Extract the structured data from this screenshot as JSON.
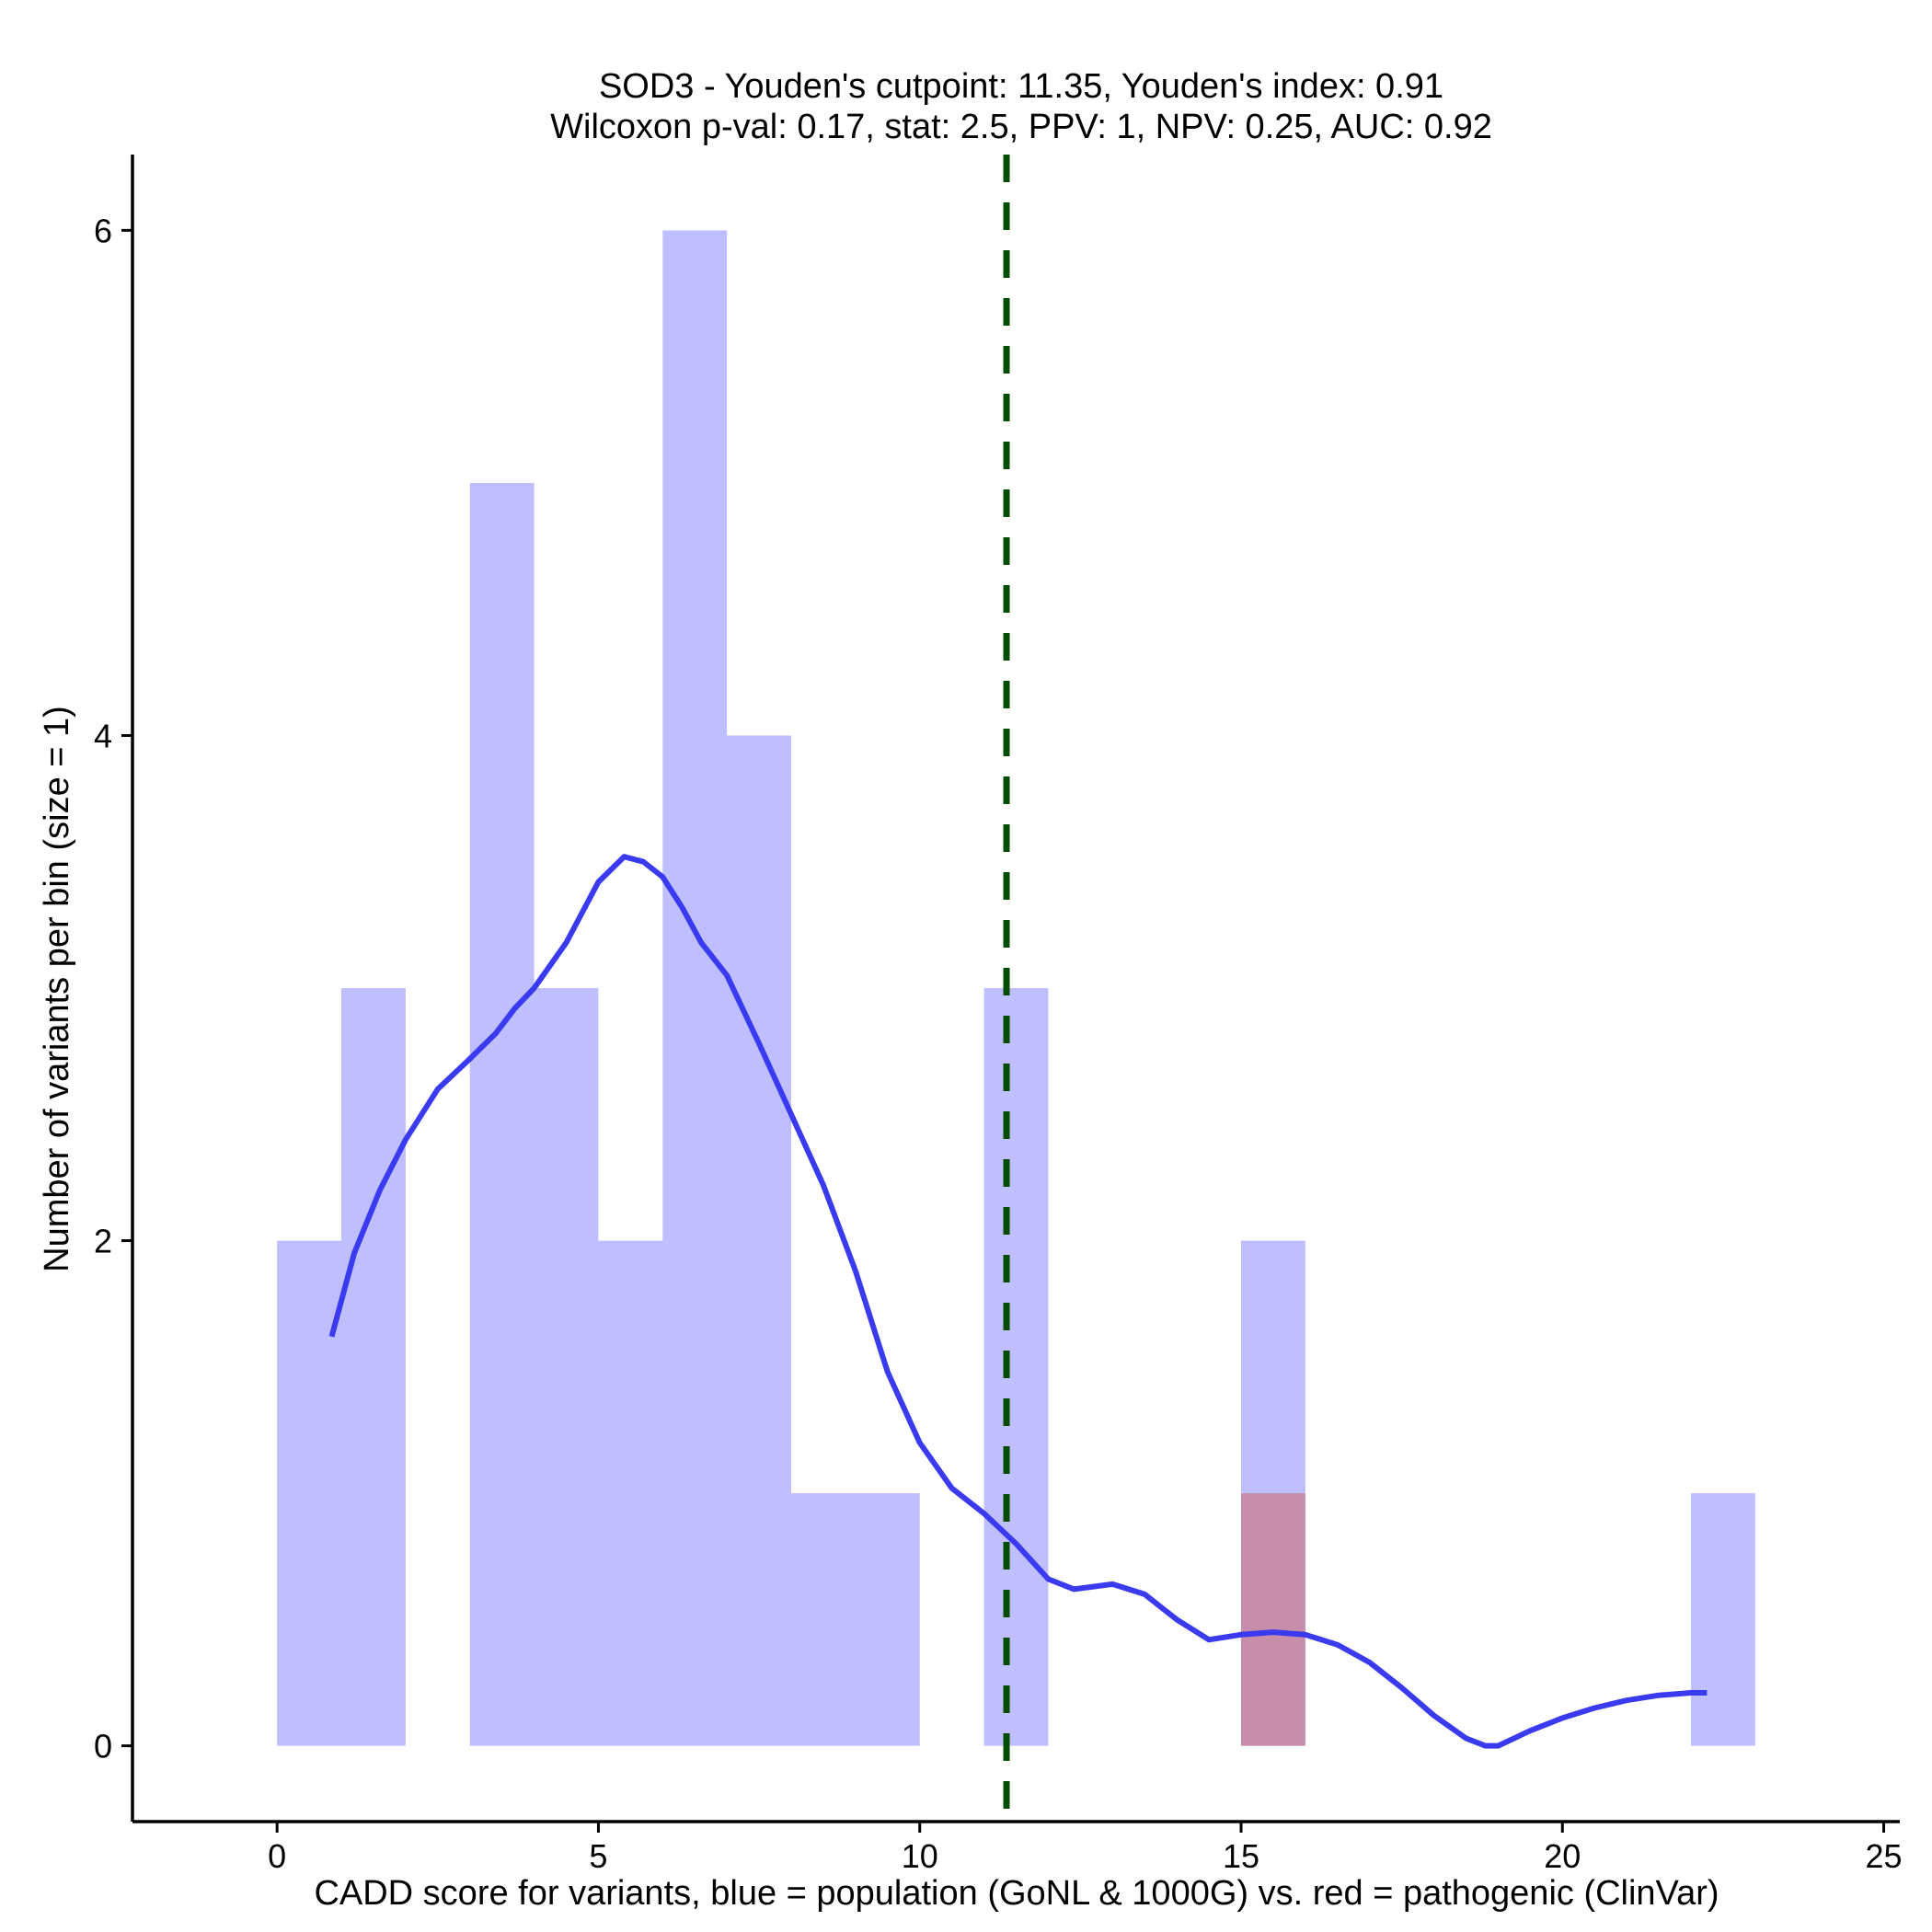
{
  "chart_data": {
    "type": "bar",
    "title_lines": [
      "SOD3 - Youden's cutpoint: 11.35, Youden's index: 0.91",
      "Wilcoxon p-val: 0.17, stat: 2.5, PPV: 1, NPV: 0.25, AUC: 0.92"
    ],
    "xlabel": "CADD score for variants, blue = population (GoNL & 1000G) vs. red = pathogenic (ClinVar)",
    "ylabel": "Number of variants per bin (size = 1)",
    "xlim": [
      -2.25,
      25.25
    ],
    "ylim": [
      -0.3,
      6.3
    ],
    "x_ticks": [
      0,
      5,
      10,
      15,
      20,
      25
    ],
    "y_ticks": [
      0,
      2,
      4,
      6
    ],
    "bin_size": 1,
    "series": [
      {
        "name": "population",
        "color": "#8080ff",
        "opacity": 0.5,
        "bins": [
          {
            "start": 0,
            "count": 2
          },
          {
            "start": 1,
            "count": 3
          },
          {
            "start": 3,
            "count": 5
          },
          {
            "start": 4,
            "count": 3
          },
          {
            "start": 5,
            "count": 2
          },
          {
            "start": 6,
            "count": 6
          },
          {
            "start": 7,
            "count": 4
          },
          {
            "start": 8,
            "count": 1
          },
          {
            "start": 9,
            "count": 1
          },
          {
            "start": 11,
            "count": 3
          },
          {
            "start": 15,
            "count": 2
          },
          {
            "start": 22,
            "count": 1
          }
        ]
      },
      {
        "name": "pathogenic",
        "color": "#cc6666",
        "opacity": 0.55,
        "bins": [
          {
            "start": 15,
            "count": 1
          }
        ]
      }
    ],
    "density_curve": {
      "name": "population density",
      "color": "#3a3af0",
      "points": [
        [
          0.85,
          1.62
        ],
        [
          1.2,
          1.95
        ],
        [
          1.6,
          2.2
        ],
        [
          2.0,
          2.4
        ],
        [
          2.5,
          2.6
        ],
        [
          3.0,
          2.72
        ],
        [
          3.4,
          2.82
        ],
        [
          3.7,
          2.92
        ],
        [
          4.0,
          3.0
        ],
        [
          4.5,
          3.18
        ],
        [
          5.0,
          3.42
        ],
        [
          5.4,
          3.52
        ],
        [
          5.7,
          3.5
        ],
        [
          6.0,
          3.44
        ],
        [
          6.3,
          3.32
        ],
        [
          6.6,
          3.18
        ],
        [
          7.0,
          3.05
        ],
        [
          7.5,
          2.78
        ],
        [
          8.0,
          2.5
        ],
        [
          8.5,
          2.22
        ],
        [
          9.0,
          1.88
        ],
        [
          9.5,
          1.48
        ],
        [
          10.0,
          1.2
        ],
        [
          10.5,
          1.02
        ],
        [
          11.0,
          0.92
        ],
        [
          11.5,
          0.8
        ],
        [
          12.0,
          0.66
        ],
        [
          12.4,
          0.62
        ],
        [
          13.0,
          0.64
        ],
        [
          13.5,
          0.6
        ],
        [
          14.0,
          0.5
        ],
        [
          14.5,
          0.42
        ],
        [
          15.0,
          0.44
        ],
        [
          15.5,
          0.45
        ],
        [
          16.0,
          0.44
        ],
        [
          16.5,
          0.4
        ],
        [
          17.0,
          0.33
        ],
        [
          17.5,
          0.23
        ],
        [
          18.0,
          0.12
        ],
        [
          18.5,
          0.03
        ],
        [
          18.8,
          0.0
        ],
        [
          19.0,
          0.0
        ],
        [
          19.5,
          0.06
        ],
        [
          20.0,
          0.11
        ],
        [
          20.5,
          0.15
        ],
        [
          21.0,
          0.18
        ],
        [
          21.5,
          0.2
        ],
        [
          22.0,
          0.21
        ],
        [
          22.25,
          0.21
        ]
      ]
    },
    "cutpoint": {
      "x": 11.35,
      "color": "#004d00",
      "style": "dashed"
    }
  }
}
